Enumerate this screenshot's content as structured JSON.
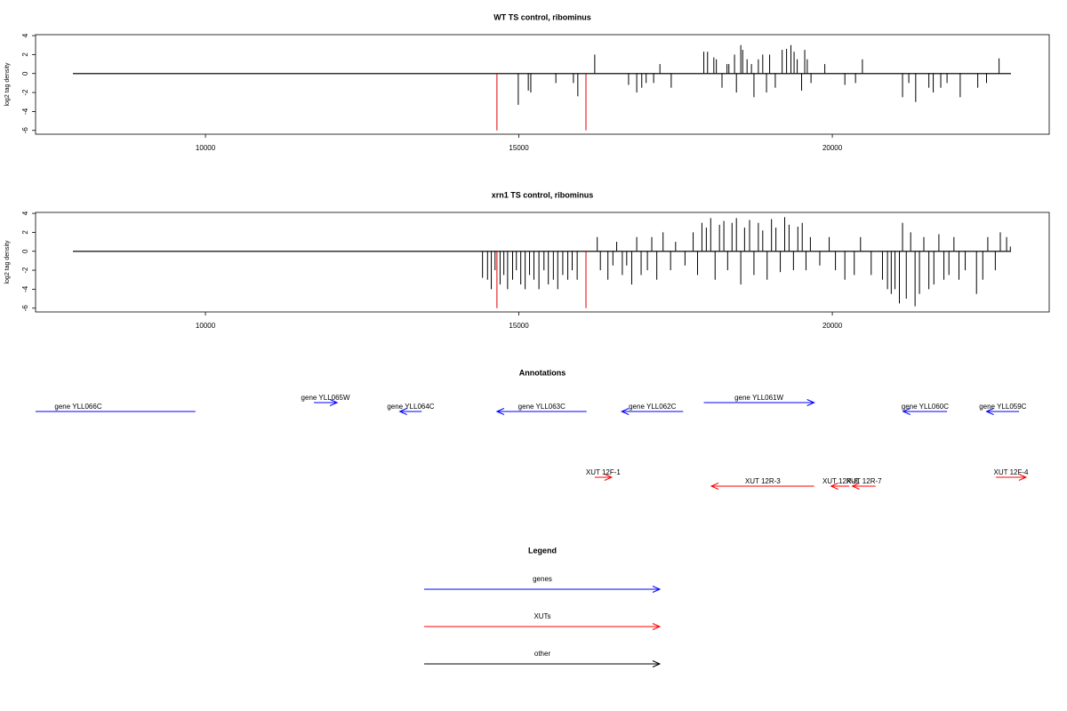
{
  "chart_data": [
    {
      "type": "spike",
      "title": "WT TS control, ribominus",
      "y_label": "log2 tag density",
      "xlim": [
        7290,
        23460
      ],
      "xticks": [
        10000,
        15000,
        20000
      ],
      "ylim": [
        -6.4,
        4.1
      ],
      "yticks": [
        4,
        2,
        0,
        -2,
        -4,
        -6
      ],
      "color": "#000000",
      "x": [
        14990,
        15150,
        15190,
        15590,
        15870,
        15940,
        16210,
        16750,
        16880,
        16960,
        17030,
        17150,
        17250,
        17430,
        17950,
        18010,
        18110,
        18150,
        18240,
        18320,
        18350,
        18440,
        18470,
        18540,
        18570,
        18640,
        18710,
        18750,
        18820,
        18890,
        18950,
        19000,
        19090,
        19200,
        19270,
        19340,
        19390,
        19440,
        19510,
        19560,
        19600,
        19660,
        19880,
        20200,
        20370,
        20480,
        21120,
        21220,
        21330,
        21540,
        21610,
        21730,
        21830,
        22040,
        22320,
        22460,
        22660
      ],
      "values": [
        -3.3,
        -1.8,
        -2,
        -1,
        -1,
        -2.4,
        2,
        -1.2,
        -2,
        -1.5,
        -1,
        -1,
        1,
        -1.5,
        2.3,
        2.3,
        1.7,
        1.5,
        -1.5,
        1,
        1,
        2,
        -2,
        3,
        2.5,
        1.5,
        1,
        -2.5,
        1.5,
        2,
        -2,
        2,
        -1.5,
        2.5,
        2.6,
        3,
        2.3,
        1.5,
        -1.8,
        2.5,
        1.5,
        -1,
        1,
        -1.2,
        -1,
        1.5,
        -2.5,
        -1,
        -3,
        -1.5,
        -2,
        -1.5,
        -1,
        -2.5,
        -1.5,
        -1,
        1.6
      ],
      "highlight": {
        "x": [
          14650,
          16070
        ],
        "values": [
          -6,
          -6
        ],
        "color": "#dd0000"
      }
    },
    {
      "type": "spike",
      "title": "xrn1 TS control, ribominus",
      "y_label": "log2 tag density",
      "xlim": [
        7290,
        23460
      ],
      "xticks": [
        10000,
        15000,
        20000
      ],
      "ylim": [
        -6.4,
        4.1
      ],
      "yticks": [
        4,
        2,
        0,
        -2,
        -4,
        -6
      ],
      "color": "#000000",
      "x": [
        14420,
        14500,
        14560,
        14620,
        14700,
        14760,
        14820,
        14900,
        14960,
        15030,
        15100,
        15170,
        15240,
        15320,
        15400,
        15470,
        15550,
        15620,
        15700,
        15780,
        15850,
        15930,
        16250,
        16300,
        16420,
        16500,
        16560,
        16650,
        16720,
        16800,
        16880,
        16950,
        17050,
        17120,
        17200,
        17300,
        17420,
        17500,
        17650,
        17780,
        17850,
        17920,
        17990,
        18060,
        18130,
        18200,
        18270,
        18330,
        18400,
        18470,
        18540,
        18600,
        18680,
        18750,
        18820,
        18890,
        18960,
        19030,
        19100,
        19170,
        19240,
        19310,
        19380,
        19450,
        19520,
        19580,
        19650,
        19800,
        19950,
        20050,
        20200,
        20350,
        20450,
        20620,
        20800,
        20880,
        20940,
        21000,
        21070,
        21120,
        21180,
        21250,
        21320,
        21390,
        21460,
        21540,
        21620,
        21700,
        21780,
        21860,
        21940,
        22020,
        22120,
        22300,
        22400,
        22480,
        22600,
        22680,
        22780,
        22840
      ],
      "values": [
        -2.8,
        -3,
        -4,
        -2,
        -3.5,
        -2.5,
        -4,
        -3,
        -2,
        -3.5,
        -4,
        -2.5,
        -3,
        -4,
        -2,
        -3.5,
        -3,
        -4,
        -2.5,
        -3,
        -2,
        -3,
        1.5,
        -2,
        -3,
        -1.5,
        1,
        -2.5,
        -1.5,
        -3.5,
        1.5,
        -2.5,
        -2,
        1.5,
        -3,
        2,
        -2,
        1,
        -1.5,
        2,
        -2.5,
        3,
        2.5,
        3.5,
        -3,
        2.8,
        3.2,
        -2,
        3,
        3.5,
        -3.5,
        2.5,
        3.3,
        -2.5,
        3,
        2.2,
        -3,
        3.4,
        2.5,
        -2.2,
        3.6,
        2.8,
        -2,
        2.6,
        3,
        -2,
        1.5,
        -1.5,
        1.5,
        -2,
        -3,
        -2.5,
        1.5,
        -2.5,
        -3,
        -4,
        -4.5,
        -4,
        -5.5,
        3,
        -5,
        2,
        -5.8,
        -4.5,
        1.5,
        -4,
        -3.5,
        1.8,
        -3,
        -2.5,
        1.5,
        -3,
        -2,
        -4.5,
        -3,
        1.5,
        -2,
        2,
        1.5,
        0.5
      ],
      "highlight": {
        "x": [
          14650,
          16070
        ],
        "values": [
          -6,
          -6
        ],
        "color": "#dd0000"
      }
    }
  ],
  "annotations": {
    "title": "Annotations",
    "genes": {
      "color": "#0000ff",
      "items": [
        {
          "label": "gene YLL066C",
          "start": 7290,
          "end": 9840,
          "strand": "-"
        },
        {
          "label": "gene YLL065W",
          "start": 11730,
          "end": 12100,
          "strand": "+"
        },
        {
          "label": "gene YLL064C",
          "start": 13100,
          "end": 13450,
          "strand": "-"
        },
        {
          "label": "gene YLL063C",
          "start": 14650,
          "end": 16080,
          "strand": "-"
        },
        {
          "label": "gene YLL062C",
          "start": 16640,
          "end": 17620,
          "strand": "-"
        },
        {
          "label": "gene YLL061W",
          "start": 17950,
          "end": 19710,
          "strand": "+"
        },
        {
          "label": "gene YLL060C",
          "start": 21130,
          "end": 21830,
          "strand": "-"
        },
        {
          "label": "gene YLL059C",
          "start": 22460,
          "end": 22980,
          "strand": "-"
        }
      ]
    },
    "xuts": {
      "color": "#ff0000",
      "items": [
        {
          "label": "XUT 12F-1",
          "start": 16210,
          "end": 16480,
          "strand": "+"
        },
        {
          "label": "XUT 12R-3",
          "start": 18070,
          "end": 19710,
          "strand": "-"
        },
        {
          "label": "XUT 12R-8",
          "start": 19980,
          "end": 20270,
          "strand": "-"
        },
        {
          "label": "XUT 12R-7",
          "start": 20320,
          "end": 20690,
          "strand": "-"
        },
        {
          "label": "XUT 12F-4",
          "start": 22610,
          "end": 23090,
          "strand": "+"
        }
      ]
    }
  },
  "legend": {
    "title": "Legend",
    "entries": [
      {
        "label": "genes",
        "color": "#0000ff"
      },
      {
        "label": "XUTs",
        "color": "#ff0000"
      },
      {
        "label": "other",
        "color": "#000000"
      }
    ]
  }
}
